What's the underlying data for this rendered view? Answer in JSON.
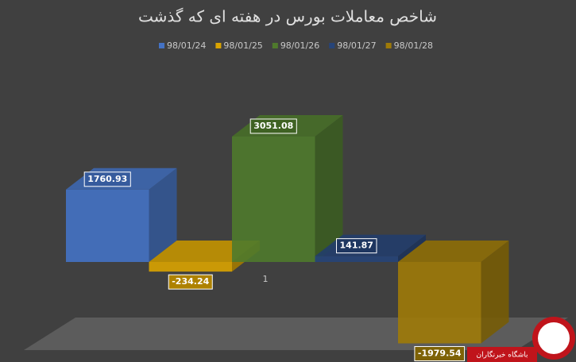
{
  "chart_data": {
    "type": "bar3d",
    "title": "شاخص معاملات بورس در هفته ای که گذشت",
    "categories": [
      "1"
    ],
    "series": [
      {
        "name": "98/01/24",
        "color": "#4472c4",
        "values": [
          1760.93
        ]
      },
      {
        "name": "98/01/25",
        "color": "#d9a300",
        "values": [
          -234.24
        ]
      },
      {
        "name": "98/01/26",
        "color": "#4f7a2c",
        "values": [
          3051.08
        ]
      },
      {
        "name": "98/01/27",
        "color": "#264478",
        "values": [
          141.87
        ]
      },
      {
        "name": "98/01/28",
        "color": "#9e7a08",
        "values": [
          -1979.54
        ]
      }
    ],
    "legend": "top",
    "watermark": "باشگاه خبرنگاران"
  }
}
